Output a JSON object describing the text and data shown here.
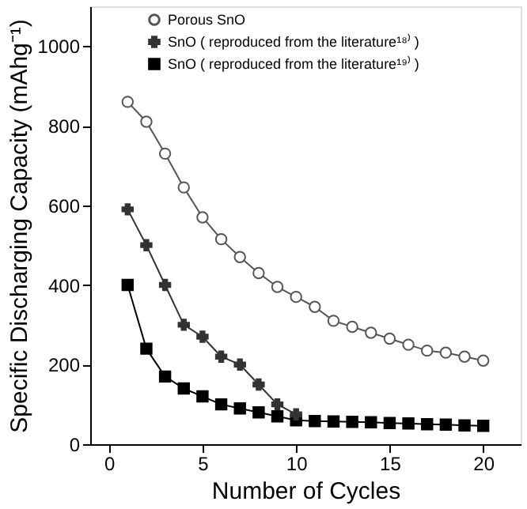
{
  "chart_data": {
    "type": "line",
    "xlabel": "Number of Cycles",
    "ylabel": "Specific Discharging Capacity (mAhg⁻¹)",
    "x": [
      1,
      2,
      3,
      4,
      5,
      6,
      7,
      8,
      9,
      10,
      11,
      12,
      13,
      14,
      15,
      16,
      17,
      18,
      19,
      20
    ],
    "series": [
      {
        "name": "Porous SnO",
        "color": "#555555",
        "marker": "circle",
        "values": [
          860,
          810,
          730,
          645,
          570,
          515,
          470,
          430,
          395,
          370,
          345,
          310,
          295,
          280,
          265,
          250,
          235,
          230,
          220,
          210
        ]
      },
      {
        "name": "SnO ( reproduced from the literature¹⁸⁾ )",
        "color": "#333333",
        "marker": "cross",
        "x": [
          1,
          2,
          3,
          4,
          5,
          6,
          7,
          8,
          9,
          10
        ],
        "values": [
          590,
          500,
          400,
          300,
          270,
          220,
          200,
          150,
          100,
          75
        ]
      },
      {
        "name": "SnO ( reproduced from the literature¹⁹⁾ )",
        "color": "#000000",
        "marker": "square",
        "values": [
          400,
          240,
          170,
          140,
          120,
          100,
          90,
          80,
          70,
          60,
          58,
          57,
          56,
          55,
          53,
          52,
          50,
          49,
          47,
          46
        ]
      }
    ],
    "xlim": [
      -1,
      22
    ],
    "ylim": [
      0,
      1100
    ],
    "xticks": [
      0,
      5,
      10,
      15,
      20
    ],
    "yticks": [
      0,
      200,
      400,
      600,
      800,
      1000
    ],
    "grid": false,
    "legend": "top left",
    "line_style": "solid"
  }
}
